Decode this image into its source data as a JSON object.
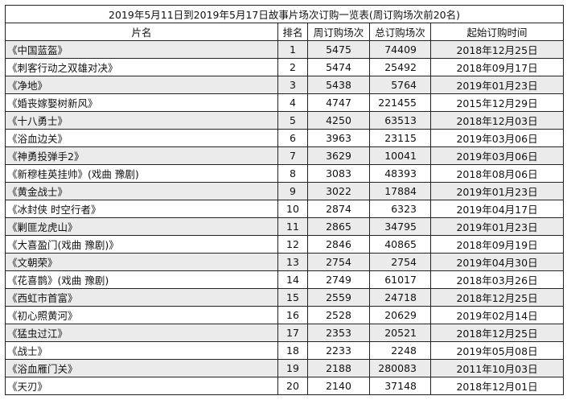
{
  "title": "2019年5月11日到2019年5月17日故事片场次订购一览表(周订购场次前20名)",
  "headers": [
    "片名",
    "排名",
    "周订购场次",
    "总订购场次",
    "起始订购时间"
  ],
  "rows": [
    {
      "name": "《中国蓝盔》",
      "rank": "1",
      "weekly": "5475",
      "total": "74409",
      "start": "2018年12月25日"
    },
    {
      "name": "《刺客行动之双雄对决》",
      "rank": "2",
      "weekly": "5474",
      "total": "25492",
      "start": "2018年09月17日"
    },
    {
      "name": "《净地》",
      "rank": "3",
      "weekly": "5438",
      "total": "5764",
      "start": "2019年01月23日"
    },
    {
      "name": "《婚丧嫁娶树新风》",
      "rank": "4",
      "weekly": "4747",
      "total": "221455",
      "start": "2015年12月29日"
    },
    {
      "name": "《十八勇士》",
      "rank": "5",
      "weekly": "4250",
      "total": "63513",
      "start": "2018年12月03日"
    },
    {
      "name": "《浴血边关》",
      "rank": "6",
      "weekly": "3963",
      "total": "23115",
      "start": "2019年03月06日"
    },
    {
      "name": "《神勇投弹手2》",
      "rank": "7",
      "weekly": "3629",
      "total": "10041",
      "start": "2019年03月06日"
    },
    {
      "name": "《新穆桂英挂帅》(戏曲 豫剧)",
      "rank": "8",
      "weekly": "3083",
      "total": "48393",
      "start": "2018年08月06日"
    },
    {
      "name": "《黄金战士》",
      "rank": "9",
      "weekly": "3022",
      "total": "17884",
      "start": "2019年01月23日"
    },
    {
      "name": "《冰封侠 时空行者》",
      "rank": "10",
      "weekly": "2874",
      "total": "6323",
      "start": "2019年04月17日"
    },
    {
      "name": "《剿匪龙虎山》",
      "rank": "11",
      "weekly": "2865",
      "total": "34795",
      "start": "2019年01月23日"
    },
    {
      "name": "《大喜盈门(戏曲 豫剧)》",
      "rank": "12",
      "weekly": "2846",
      "total": "40865",
      "start": "2018年09月19日"
    },
    {
      "name": "《文朝荣》",
      "rank": "13",
      "weekly": "2754",
      "total": "2754",
      "start": "2019年04月30日"
    },
    {
      "name": "《花喜鹊》(戏曲 豫剧)",
      "rank": "14",
      "weekly": "2749",
      "total": "61017",
      "start": "2018年03月26日"
    },
    {
      "name": "《西虹市首富》",
      "rank": "15",
      "weekly": "2559",
      "total": "24718",
      "start": "2018年12月25日"
    },
    {
      "name": "《初心照黄河》",
      "rank": "16",
      "weekly": "2528",
      "total": "20629",
      "start": "2019年02月14日"
    },
    {
      "name": "《猛虫过江》",
      "rank": "17",
      "weekly": "2353",
      "total": "20521",
      "start": "2018年12月25日"
    },
    {
      "name": "《战士》",
      "rank": "18",
      "weekly": "2233",
      "total": "2248",
      "start": "2019年05月08日"
    },
    {
      "name": "《浴血雁门关》",
      "rank": "19",
      "weekly": "2188",
      "total": "280083",
      "start": "2011年10月03日"
    },
    {
      "name": "《天刃》",
      "rank": "20",
      "weekly": "2140",
      "total": "37148",
      "start": "2018年12月01日"
    }
  ]
}
